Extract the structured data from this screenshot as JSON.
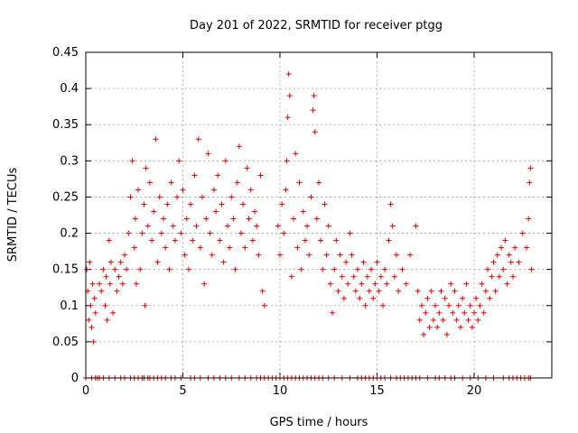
{
  "chart_data": {
    "type": "scatter",
    "title": "Day 201 of 2022, SRMTID for receiver ptgg",
    "xlabel": "GPS time / hours",
    "ylabel": "SRMTID / TECUs",
    "xlim": [
      0,
      24
    ],
    "ylim": [
      0,
      0.45
    ],
    "xticks": [
      0,
      5,
      10,
      15,
      20
    ],
    "xtick_labels": [
      "0",
      "5",
      "10",
      "15",
      "20"
    ],
    "yticks": [
      0,
      0.05,
      0.1,
      0.15,
      0.2,
      0.25,
      0.3,
      0.35,
      0.4,
      0.45
    ],
    "ytick_labels": [
      "0",
      "0.05",
      "0.1",
      "0.15",
      "0.2",
      "0.25",
      "0.3",
      "0.35",
      "0.4",
      "0.45"
    ],
    "grid": true,
    "marker": "+",
    "color": "#dd0000",
    "series": [
      {
        "name": "SRMTID",
        "points": [
          [
            0.05,
            0.15
          ],
          [
            0.1,
            0.12
          ],
          [
            0.15,
            0.08
          ],
          [
            0.2,
            0.16
          ],
          [
            0.25,
            0.1
          ],
          [
            0.3,
            0.07
          ],
          [
            0.35,
            0.13
          ],
          [
            0.4,
            0.05
          ],
          [
            0.45,
            0.11
          ],
          [
            0.5,
            0.09
          ],
          [
            0.7,
            0.13
          ],
          [
            0.8,
            0.12
          ],
          [
            0.9,
            0.15
          ],
          [
            1.0,
            0.1
          ],
          [
            1.05,
            0.14
          ],
          [
            1.1,
            0.08
          ],
          [
            1.2,
            0.19
          ],
          [
            1.25,
            0.13
          ],
          [
            1.3,
            0.16
          ],
          [
            1.4,
            0.09
          ],
          [
            1.5,
            0.15
          ],
          [
            1.6,
            0.12
          ],
          [
            1.7,
            0.14
          ],
          [
            1.8,
            0.16
          ],
          [
            1.9,
            0.13
          ],
          [
            2.0,
            0.17
          ],
          [
            2.1,
            0.15
          ],
          [
            2.2,
            0.2
          ],
          [
            2.3,
            0.25
          ],
          [
            2.4,
            0.3
          ],
          [
            2.5,
            0.18
          ],
          [
            2.55,
            0.22
          ],
          [
            2.6,
            0.13
          ],
          [
            2.7,
            0.26
          ],
          [
            2.8,
            0.15
          ],
          [
            2.9,
            0.2
          ],
          [
            3.0,
            0.24
          ],
          [
            3.05,
            0.1
          ],
          [
            3.1,
            0.29
          ],
          [
            3.2,
            0.21
          ],
          [
            3.3,
            0.27
          ],
          [
            3.4,
            0.19
          ],
          [
            3.5,
            0.23
          ],
          [
            3.6,
            0.33
          ],
          [
            3.7,
            0.16
          ],
          [
            3.8,
            0.25
          ],
          [
            3.9,
            0.2
          ],
          [
            4.0,
            0.22
          ],
          [
            4.1,
            0.18
          ],
          [
            4.2,
            0.24
          ],
          [
            4.3,
            0.15
          ],
          [
            4.4,
            0.27
          ],
          [
            4.5,
            0.21
          ],
          [
            4.6,
            0.19
          ],
          [
            4.7,
            0.25
          ],
          [
            4.8,
            0.3
          ],
          [
            4.9,
            0.2
          ],
          [
            5.0,
            0.26
          ],
          [
            5.1,
            0.17
          ],
          [
            5.2,
            0.22
          ],
          [
            5.3,
            0.15
          ],
          [
            5.4,
            0.24
          ],
          [
            5.5,
            0.19
          ],
          [
            5.6,
            0.28
          ],
          [
            5.7,
            0.21
          ],
          [
            5.8,
            0.33
          ],
          [
            5.9,
            0.18
          ],
          [
            6.0,
            0.25
          ],
          [
            6.1,
            0.13
          ],
          [
            6.2,
            0.22
          ],
          [
            6.3,
            0.31
          ],
          [
            6.4,
            0.2
          ],
          [
            6.5,
            0.17
          ],
          [
            6.6,
            0.26
          ],
          [
            6.7,
            0.23
          ],
          [
            6.8,
            0.28
          ],
          [
            6.9,
            0.19
          ],
          [
            7.0,
            0.24
          ],
          [
            7.1,
            0.16
          ],
          [
            7.2,
            0.3
          ],
          [
            7.3,
            0.21
          ],
          [
            7.4,
            0.18
          ],
          [
            7.5,
            0.25
          ],
          [
            7.6,
            0.22
          ],
          [
            7.7,
            0.15
          ],
          [
            7.8,
            0.27
          ],
          [
            7.9,
            0.32
          ],
          [
            8.0,
            0.2
          ],
          [
            8.1,
            0.24
          ],
          [
            8.2,
            0.18
          ],
          [
            8.3,
            0.29
          ],
          [
            8.4,
            0.22
          ],
          [
            8.5,
            0.26
          ],
          [
            8.6,
            0.19
          ],
          [
            8.7,
            0.23
          ],
          [
            8.8,
            0.21
          ],
          [
            8.9,
            0.17
          ],
          [
            9.0,
            0.28
          ],
          [
            9.1,
            0.12
          ],
          [
            9.2,
            0.1
          ],
          [
            9.9,
            0.21
          ],
          [
            10.0,
            0.17
          ],
          [
            10.1,
            0.24
          ],
          [
            10.2,
            0.2
          ],
          [
            10.3,
            0.26
          ],
          [
            10.35,
            0.3
          ],
          [
            10.4,
            0.36
          ],
          [
            10.45,
            0.42
          ],
          [
            10.5,
            0.39
          ],
          [
            10.6,
            0.14
          ],
          [
            10.7,
            0.22
          ],
          [
            10.8,
            0.31
          ],
          [
            10.9,
            0.18
          ],
          [
            11.0,
            0.27
          ],
          [
            11.1,
            0.15
          ],
          [
            11.2,
            0.23
          ],
          [
            11.3,
            0.19
          ],
          [
            11.4,
            0.21
          ],
          [
            11.5,
            0.17
          ],
          [
            11.6,
            0.25
          ],
          [
            11.7,
            0.37
          ],
          [
            11.75,
            0.39
          ],
          [
            11.8,
            0.34
          ],
          [
            11.9,
            0.22
          ],
          [
            12.0,
            0.27
          ],
          [
            12.1,
            0.19
          ],
          [
            12.2,
            0.15
          ],
          [
            12.3,
            0.24
          ],
          [
            12.4,
            0.17
          ],
          [
            12.5,
            0.21
          ],
          [
            12.6,
            0.13
          ],
          [
            12.7,
            0.09
          ],
          [
            12.8,
            0.15
          ],
          [
            12.9,
            0.19
          ],
          [
            13.0,
            0.12
          ],
          [
            13.1,
            0.17
          ],
          [
            13.2,
            0.14
          ],
          [
            13.3,
            0.11
          ],
          [
            13.4,
            0.16
          ],
          [
            13.5,
            0.13
          ],
          [
            13.6,
            0.2
          ],
          [
            13.7,
            0.17
          ],
          [
            13.8,
            0.14
          ],
          [
            13.9,
            0.12
          ],
          [
            14.0,
            0.15
          ],
          [
            14.1,
            0.11
          ],
          [
            14.2,
            0.13
          ],
          [
            14.3,
            0.16
          ],
          [
            14.4,
            0.1
          ],
          [
            14.5,
            0.14
          ],
          [
            14.6,
            0.12
          ],
          [
            14.7,
            0.15
          ],
          [
            14.8,
            0.11
          ],
          [
            14.9,
            0.13
          ],
          [
            15.0,
            0.16
          ],
          [
            15.1,
            0.12
          ],
          [
            15.2,
            0.14
          ],
          [
            15.3,
            0.1
          ],
          [
            15.4,
            0.15
          ],
          [
            15.5,
            0.13
          ],
          [
            15.6,
            0.19
          ],
          [
            15.7,
            0.24
          ],
          [
            15.8,
            0.21
          ],
          [
            15.9,
            0.14
          ],
          [
            16.0,
            0.17
          ],
          [
            16.1,
            0.12
          ],
          [
            16.3,
            0.15
          ],
          [
            16.5,
            0.13
          ],
          [
            16.7,
            0.17
          ],
          [
            17.0,
            0.21
          ],
          [
            17.1,
            0.12
          ],
          [
            17.2,
            0.08
          ],
          [
            17.3,
            0.1
          ],
          [
            17.4,
            0.06
          ],
          [
            17.5,
            0.09
          ],
          [
            17.6,
            0.11
          ],
          [
            17.7,
            0.07
          ],
          [
            17.8,
            0.12
          ],
          [
            17.9,
            0.08
          ],
          [
            18.0,
            0.1
          ],
          [
            18.1,
            0.07
          ],
          [
            18.2,
            0.09
          ],
          [
            18.3,
            0.12
          ],
          [
            18.4,
            0.08
          ],
          [
            18.5,
            0.11
          ],
          [
            18.6,
            0.06
          ],
          [
            18.7,
            0.1
          ],
          [
            18.8,
            0.13
          ],
          [
            18.9,
            0.09
          ],
          [
            19.0,
            0.12
          ],
          [
            19.1,
            0.08
          ],
          [
            19.2,
            0.1
          ],
          [
            19.3,
            0.07
          ],
          [
            19.4,
            0.11
          ],
          [
            19.5,
            0.09
          ],
          [
            19.6,
            0.13
          ],
          [
            19.7,
            0.08
          ],
          [
            19.8,
            0.1
          ],
          [
            19.9,
            0.07
          ],
          [
            20.0,
            0.09
          ],
          [
            20.1,
            0.11
          ],
          [
            20.2,
            0.08
          ],
          [
            20.3,
            0.1
          ],
          [
            20.4,
            0.13
          ],
          [
            20.5,
            0.09
          ],
          [
            20.6,
            0.12
          ],
          [
            20.7,
            0.15
          ],
          [
            20.8,
            0.11
          ],
          [
            20.9,
            0.14
          ],
          [
            21.0,
            0.16
          ],
          [
            21.1,
            0.12
          ],
          [
            21.2,
            0.17
          ],
          [
            21.3,
            0.14
          ],
          [
            21.4,
            0.18
          ],
          [
            21.5,
            0.15
          ],
          [
            21.6,
            0.19
          ],
          [
            21.7,
            0.13
          ],
          [
            21.8,
            0.17
          ],
          [
            21.9,
            0.16
          ],
          [
            22.0,
            0.14
          ],
          [
            22.1,
            0.18
          ],
          [
            22.3,
            0.16
          ],
          [
            22.5,
            0.2
          ],
          [
            22.7,
            0.18
          ],
          [
            22.8,
            0.22
          ],
          [
            22.85,
            0.27
          ],
          [
            22.9,
            0.29
          ],
          [
            22.95,
            0.15
          ]
        ],
        "zero_points": [
          0.0,
          0.3,
          0.5,
          0.6,
          0.7,
          0.9,
          1.2,
          1.5,
          1.8,
          2.0,
          2.3,
          2.5,
          2.7,
          2.9,
          3.0,
          3.2,
          3.3,
          3.5,
          3.7,
          3.9,
          4.1,
          4.4,
          4.6,
          4.9,
          5.4,
          5.6,
          5.9,
          6.3,
          6.6,
          6.9,
          7.2,
          7.5,
          7.9,
          8.2,
          8.5,
          8.8,
          9.0,
          9.2,
          9.4,
          9.6,
          9.8,
          10.0,
          10.2,
          10.4,
          10.6,
          10.8,
          11.0,
          11.2,
          11.4,
          11.6,
          11.8,
          12.0,
          12.2,
          12.5,
          12.8,
          13.2,
          13.6,
          14.0,
          14.2,
          14.4,
          14.6,
          14.8,
          15.0,
          15.2,
          15.4,
          15.7,
          16.0,
          16.2,
          16.4,
          16.6,
          16.8,
          17.0,
          17.2,
          17.6,
          18.0,
          18.2,
          18.5,
          18.8,
          19.0,
          19.4,
          19.8,
          20.2,
          20.6,
          21.0,
          21.5,
          21.8,
          22.0,
          22.2,
          22.4,
          22.6,
          22.8,
          22.9
        ]
      }
    ]
  }
}
